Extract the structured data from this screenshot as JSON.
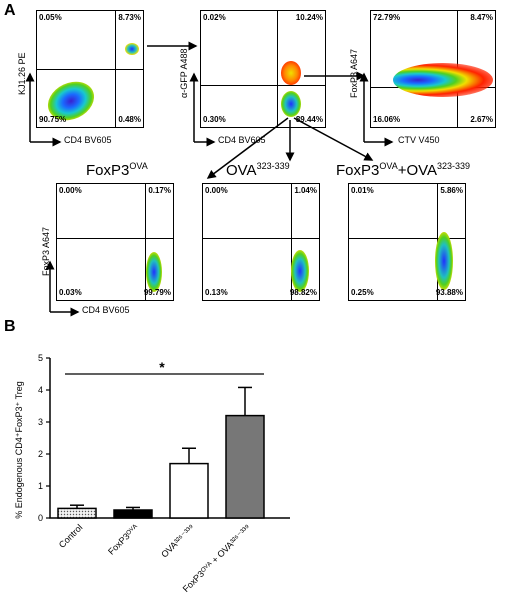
{
  "panelA": {
    "letter": "A",
    "plot1": {
      "ylabel": "KJ1.26 PE",
      "xlabel": "CD4 BV605",
      "q": {
        "ul": "0.05%",
        "ur": "8.73%",
        "ll": "90.75%",
        "lr": "0.48%"
      }
    },
    "plot2": {
      "ylabel": "α-GFP A488",
      "xlabel": "CD4 BV605",
      "q": {
        "ul": "0.02%",
        "ur": "10.24%",
        "ll": "0.30%",
        "lr": "89.44%"
      }
    },
    "plot3": {
      "ylabel": "FoxP3 A647",
      "xlabel": "CTV V450",
      "q": {
        "ul": "72.79%",
        "ur": "8.47%",
        "ll": "16.06%",
        "lr": "2.67%"
      }
    },
    "sub1": {
      "title_main": "FoxP3",
      "title_sup": "OVA",
      "ylabel": "FoxP3 A647",
      "xlabel": "CD4 BV605",
      "q": {
        "ul": "0.00%",
        "ur": "0.17%",
        "ll": "0.03%",
        "lr": "99.79%"
      }
    },
    "sub2": {
      "title_main": "OVA",
      "title_sup": "323-339",
      "q": {
        "ul": "0.00%",
        "ur": "1.04%",
        "ll": "0.13%",
        "lr": "98.82%"
      }
    },
    "sub3": {
      "title_main1": "FoxP3",
      "title_sup1": "OVA",
      "title_main2": "+OVA",
      "title_sup2": "323-339",
      "q": {
        "ul": "0.01%",
        "ur": "5.86%",
        "ll": "0.25%",
        "lr": "93.88%"
      }
    }
  },
  "panelB": {
    "letter": "B",
    "significance": "*"
  },
  "chart_data": {
    "type": "bar",
    "ylabel": "% Endogenous CD4⁺FoxP3⁺ Treg",
    "ylim": [
      0,
      5
    ],
    "yticks": [
      0,
      1,
      2,
      3,
      4,
      5
    ],
    "categories": [
      "Control",
      "FoxP3ᴼⱽᴬ",
      "OVA³²⁶⁻³³⁹",
      "FoxP3ᴼⱽᴬ + OVA³²⁶⁻³³⁹"
    ],
    "values": [
      0.3,
      0.25,
      1.7,
      3.2
    ],
    "errors": [
      0.1,
      0.08,
      0.48,
      0.88
    ],
    "fills": [
      "#dddddd",
      "#000000",
      "#ffffff",
      "#777777"
    ],
    "patterns": [
      "dots",
      "solid",
      "solid",
      "solid"
    ]
  }
}
